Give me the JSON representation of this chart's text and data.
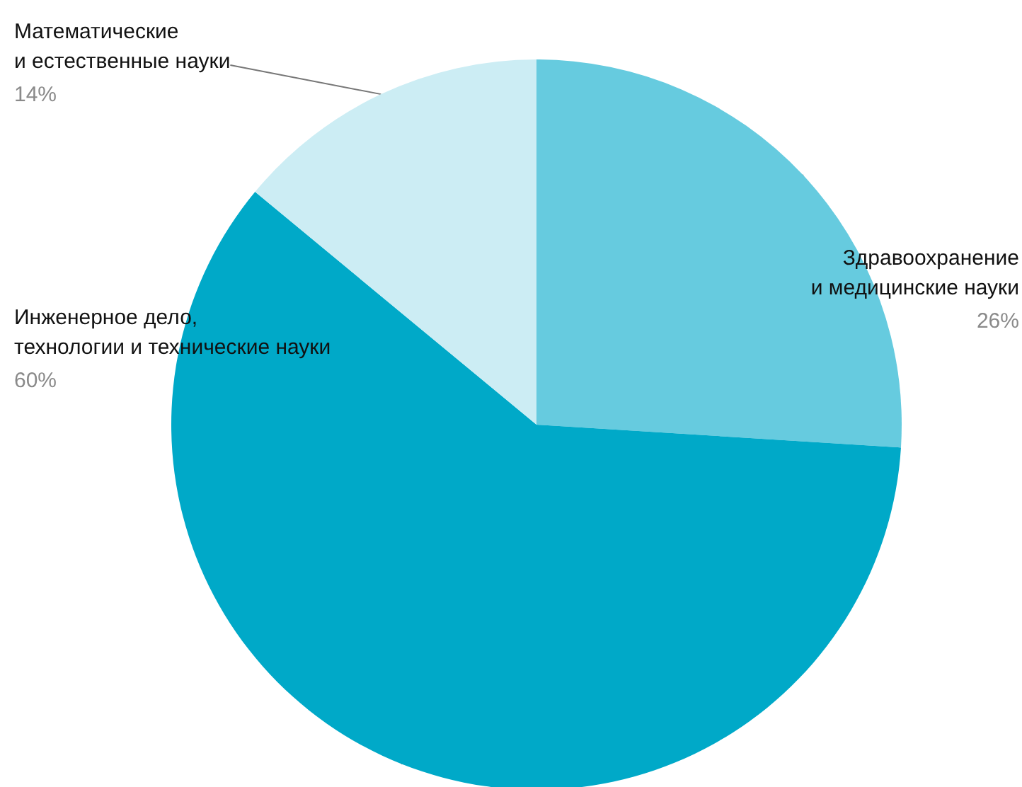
{
  "chart_data": {
    "type": "pie",
    "categories": [
      "Здравоохранение\nи медицинские науки",
      "Инженерное дело,\nтехнологии и технические науки",
      "Математические\nи естественные науки"
    ],
    "values": [
      26,
      60,
      14
    ],
    "value_labels": [
      "26%",
      "60%",
      "14%"
    ],
    "colors": [
      "#66cbdf",
      "#00a9c8",
      "#ccedf4"
    ],
    "legend": false
  }
}
